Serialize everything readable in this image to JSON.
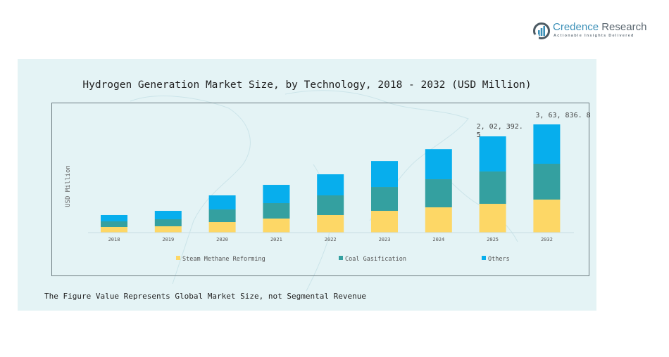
{
  "brand": {
    "name_part1": "Credence",
    "name_part2": " Research",
    "tagline": "Actionable Insights Delivered"
  },
  "footnote": "The Figure Value Represents Global Market Size, not Segmental Revenue",
  "colors": {
    "panel_bg": "#e4f3f5",
    "steam": "#fdd766",
    "coal": "#34a0a0",
    "others": "#07aeed",
    "brand_blue": "#3a8fb7"
  },
  "chart_data": {
    "type": "bar",
    "stacked": true,
    "title": "Hydrogen Generation Market Size, by Technology, 2018 - 2032 (USD Million)",
    "xlabel": "",
    "ylabel": "USD Million",
    "categories": [
      "2018",
      "2019",
      "2020",
      "2021",
      "2022",
      "2023",
      "2024",
      "2025",
      "2032"
    ],
    "series": [
      {
        "name": "Steam Methane Reforming",
        "color": "#fdd766",
        "values": [
          18900,
          21300,
          35400,
          47300,
          59100,
          73200,
          85000,
          96800,
          111000
        ]
      },
      {
        "name": "Coal Gasification",
        "color": "#34a0a0",
        "values": [
          18900,
          23600,
          42500,
          51900,
          66100,
          80300,
          94500,
          108700,
          120500
        ]
      },
      {
        "name": "Others",
        "color": "#07aeed",
        "values": [
          21300,
          28300,
          47300,
          61400,
          70900,
          87200,
          101200,
          118100,
          132300
        ]
      }
    ],
    "annotations": [
      {
        "category": "2025",
        "text": "2, 02, 392. 5"
      },
      {
        "category": "2032",
        "text": "3, 63, 836. 8"
      }
    ],
    "ylim": [
      0,
      363836.8
    ],
    "yaxis_visible": false,
    "grid": false,
    "legend_position": "bottom"
  }
}
